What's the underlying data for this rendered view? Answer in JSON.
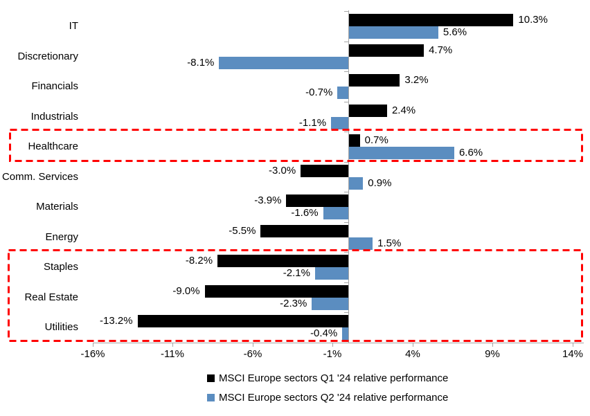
{
  "colors": {
    "q1_bar": "#000000",
    "q2_bar": "#5B8DC0",
    "axis": "#A6A6A6",
    "highlight_box": "#FF0000",
    "text": "#000000",
    "background": "#FFFFFF"
  },
  "chart_data": {
    "type": "bar",
    "orientation": "horizontal",
    "title": "",
    "categories": [
      "IT",
      "Discretionary",
      "Financials",
      "Industrials",
      "Healthcare",
      "Comm. Services",
      "Materials",
      "Energy",
      "Staples",
      "Real Estate",
      "Utilities"
    ],
    "series": [
      {
        "name": "MSCI Europe sectors Q1 '24 relative performance",
        "color": "#000000",
        "values": [
          10.3,
          4.7,
          3.2,
          2.4,
          0.7,
          -3.0,
          -3.9,
          -5.5,
          -8.2,
          -9.0,
          -13.2
        ]
      },
      {
        "name": "MSCI Europe sectors Q2 '24 relative performance",
        "color": "#5B8DC0",
        "values": [
          5.6,
          -8.1,
          -0.7,
          -1.1,
          6.6,
          0.9,
          -1.6,
          1.5,
          -2.1,
          -2.3,
          -0.4
        ]
      }
    ],
    "data_labels": {
      "series_0": [
        "10.3%",
        "4.7%",
        "3.2%",
        "2.4%",
        "0.7%",
        "-3.0%",
        "-3.9%",
        "-5.5%",
        "-8.2%",
        "-9.0%",
        "-13.2%"
      ],
      "series_1": [
        "5.6%",
        "-8.1%",
        "-0.7%",
        "-1.1%",
        "6.6%",
        "0.9%",
        "-1.6%",
        "1.5%",
        "-2.1%",
        "-2.3%",
        "-0.4%"
      ]
    },
    "x_axis": {
      "tick_labels": [
        "-16%",
        "-11%",
        "-6%",
        "-1%",
        "4%",
        "9%",
        "14%"
      ],
      "tick_values": [
        -16,
        -11,
        -6,
        -1,
        4,
        9,
        14
      ],
      "min": -16,
      "max": 14.7,
      "unit": "%"
    },
    "grid": false,
    "legend_position": "bottom",
    "highlight_boxes": [
      {
        "rows": [
          "Healthcare"
        ],
        "style": "red-dashed"
      },
      {
        "rows": [
          "Staples",
          "Real Estate",
          "Utilities"
        ],
        "style": "red-dashed"
      }
    ]
  }
}
